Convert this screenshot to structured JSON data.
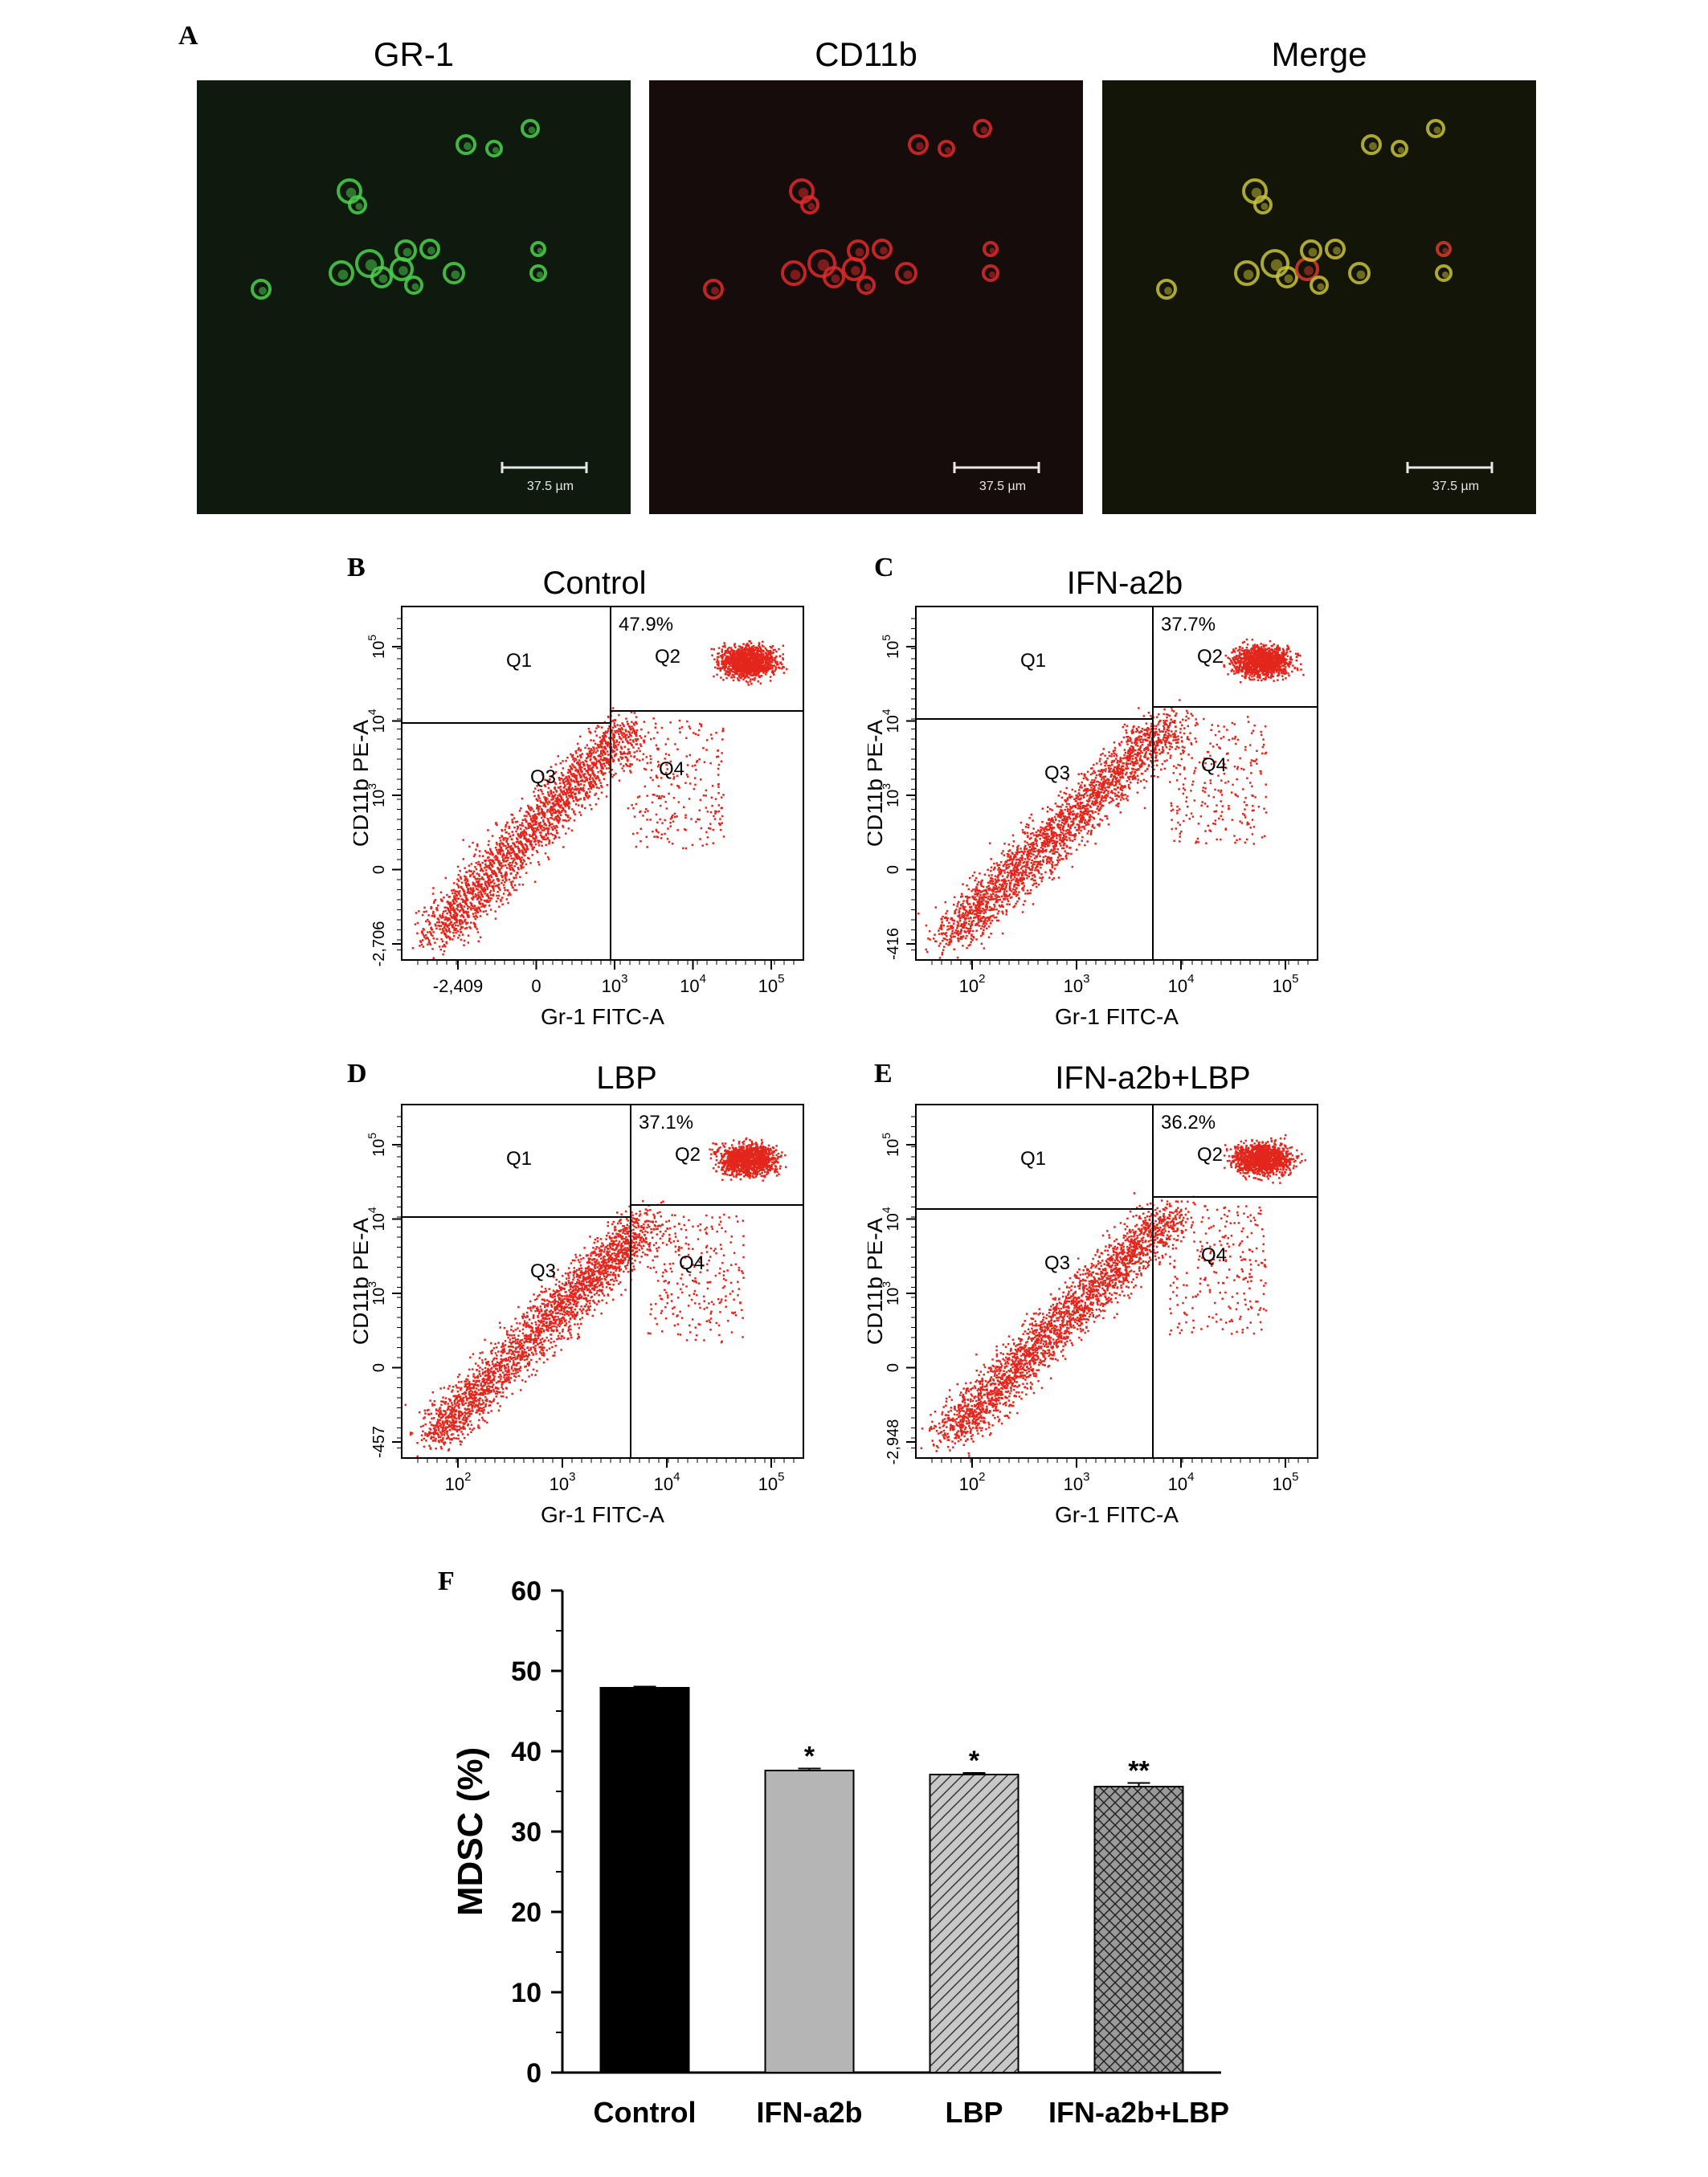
{
  "panel_a": {
    "letter": "A",
    "images": [
      {
        "title": "GR-1",
        "scale_label": "37.5 µm",
        "background": "#0d1a0d",
        "cell_color": "#4ed14e"
      },
      {
        "title": "CD11b",
        "scale_label": "37.5 µm",
        "background": "#170c0c",
        "cell_color": "#e02a2a"
      },
      {
        "title": "Merge",
        "scale_label": "37.5 µm",
        "background": "#121508",
        "cell_color": "#c9c23a"
      }
    ]
  },
  "flow": [
    {
      "letter": "B",
      "title": "Control",
      "q2_percent": "47.9%",
      "quadrants": [
        "Q1",
        "Q2",
        "Q3",
        "Q4"
      ],
      "xlabel": "Gr-1 FITC-A",
      "ylabel": "CD11b PE-A",
      "x_ticks": [
        "-2,409",
        "0",
        "10",
        "10",
        "10"
      ],
      "x_tick_exps": [
        "",
        "",
        "3",
        "4",
        "5"
      ],
      "y_ticks": [
        "-2,706",
        "0",
        "10",
        "10",
        "10"
      ],
      "y_tick_exps": [
        "",
        "",
        "3",
        "4",
        "5"
      ]
    },
    {
      "letter": "C",
      "title": "IFN-a2b",
      "q2_percent": "37.7%",
      "quadrants": [
        "Q1",
        "Q2",
        "Q3",
        "Q4"
      ],
      "xlabel": "Gr-1 FITC-A",
      "ylabel": "CD11b PE-A",
      "x_ticks": [
        "10",
        "10",
        "10",
        "10"
      ],
      "x_tick_exps": [
        "2",
        "3",
        "4",
        "5"
      ],
      "y_ticks": [
        "-416",
        "0",
        "10",
        "10",
        "10"
      ],
      "y_tick_exps": [
        "",
        "",
        "3",
        "4",
        "5"
      ]
    },
    {
      "letter": "D",
      "title": "LBP",
      "q2_percent": "37.1%",
      "quadrants": [
        "Q1",
        "Q2",
        "Q3",
        "Q4"
      ],
      "xlabel": "Gr-1 FITC-A",
      "ylabel": "CD11b PE-A",
      "x_ticks": [
        "10",
        "10",
        "10",
        "10"
      ],
      "x_tick_exps": [
        "2",
        "3",
        "4",
        "5"
      ],
      "y_ticks": [
        "-457",
        "0",
        "10",
        "10",
        "10"
      ],
      "y_tick_exps": [
        "",
        "",
        "3",
        "4",
        "5"
      ]
    },
    {
      "letter": "E",
      "title": "IFN-a2b+LBP",
      "q2_percent": "36.2%",
      "quadrants": [
        "Q1",
        "Q2",
        "Q3",
        "Q4"
      ],
      "xlabel": "Gr-1 FITC-A",
      "ylabel": "CD11b PE-A",
      "x_ticks": [
        "10",
        "10",
        "10",
        "10"
      ],
      "x_tick_exps": [
        "2",
        "3",
        "4",
        "5"
      ],
      "y_ticks": [
        "-2,948",
        "0",
        "10",
        "10",
        "10"
      ],
      "y_tick_exps": [
        "",
        "",
        "3",
        "4",
        "5"
      ]
    }
  ],
  "chart_data": {
    "type": "bar",
    "letter": "F",
    "categories": [
      "Control",
      "IFN-a2b",
      "LBP",
      "IFN-a2b+LBP"
    ],
    "values": [
      47.9,
      37.6,
      37.1,
      35.6
    ],
    "errors": [
      0.15,
      0.25,
      0.2,
      0.45
    ],
    "significance": [
      "",
      "*",
      "*",
      "**"
    ],
    "fills": [
      "solid",
      "light-gray",
      "diagonal-hatch",
      "cross-hatch"
    ],
    "ylabel": "MDSC (%)",
    "ylim": [
      0,
      60
    ],
    "yticks": [
      0,
      10,
      20,
      30,
      40,
      50,
      60
    ],
    "grid": false
  }
}
